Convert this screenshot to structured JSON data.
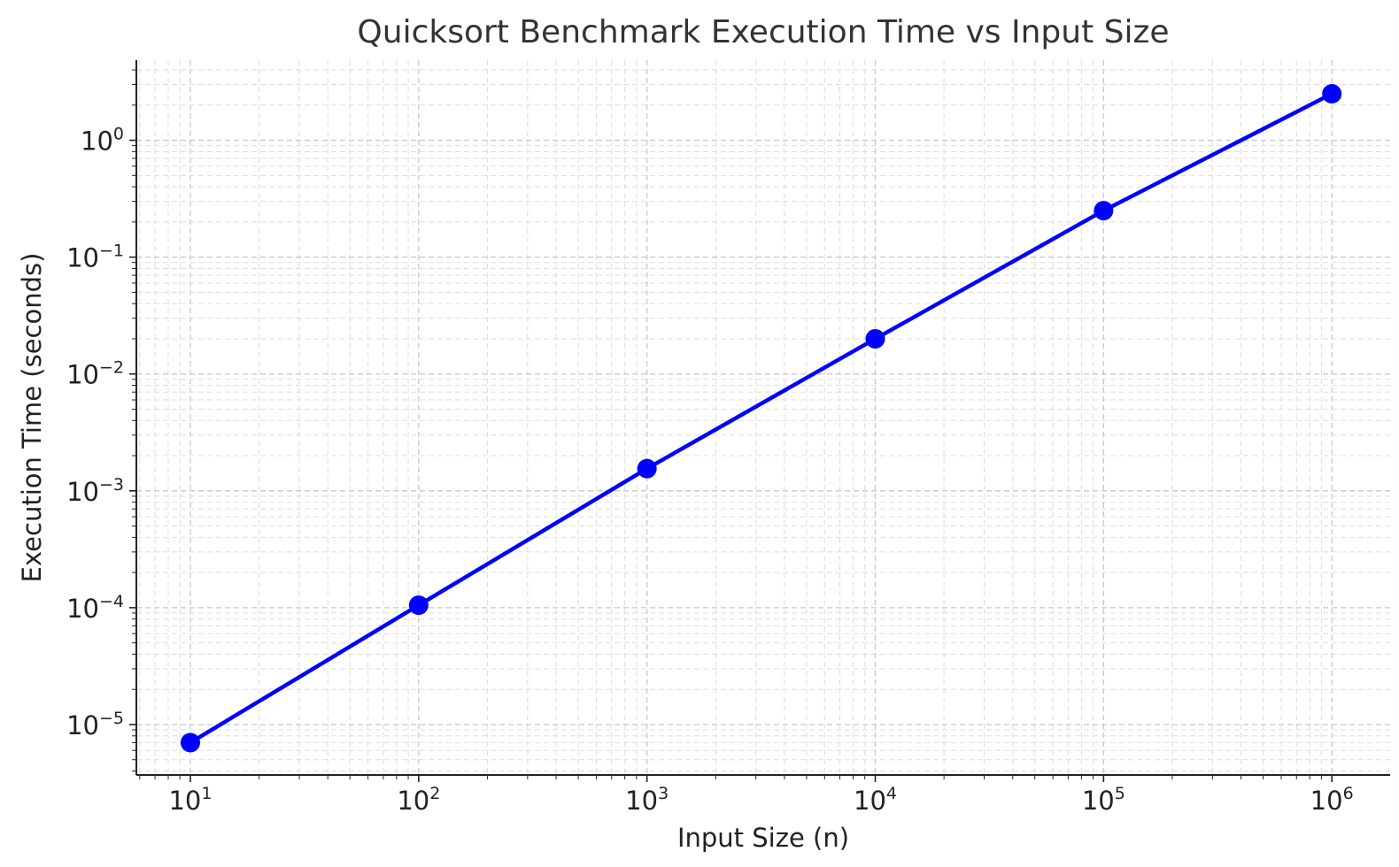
{
  "chart_data": {
    "type": "line",
    "title": "Quicksort Benchmark Execution Time vs Input Size",
    "xlabel": "Input Size (n)",
    "ylabel": "Execution Time (seconds)",
    "xscale": "log",
    "yscale": "log",
    "xlim": [
      5.8,
      1800000
    ],
    "ylim": [
      3.7e-06,
      4.85
    ],
    "grid": true,
    "legend": "none",
    "series_color": "#0000ff",
    "x": [
      10,
      100,
      1000,
      10000,
      100000,
      1000000
    ],
    "series": [
      {
        "values": [
          7e-06,
          0.000105,
          0.00155,
          0.02,
          0.25,
          2.5
        ]
      }
    ],
    "xticks": [
      {
        "value": 10,
        "base": "10",
        "exp": "1"
      },
      {
        "value": 100,
        "base": "10",
        "exp": "2"
      },
      {
        "value": 1000,
        "base": "10",
        "exp": "3"
      },
      {
        "value": 10000,
        "base": "10",
        "exp": "4"
      },
      {
        "value": 100000,
        "base": "10",
        "exp": "5"
      },
      {
        "value": 1000000,
        "base": "10",
        "exp": "6"
      }
    ],
    "yticks": [
      {
        "value": 1e-05,
        "base": "10",
        "exp": "−5"
      },
      {
        "value": 0.0001,
        "base": "10",
        "exp": "−4"
      },
      {
        "value": 0.001,
        "base": "10",
        "exp": "−3"
      },
      {
        "value": 0.01,
        "base": "10",
        "exp": "−2"
      },
      {
        "value": 0.1,
        "base": "10",
        "exp": "−1"
      },
      {
        "value": 1,
        "base": "10",
        "exp": "0"
      }
    ]
  }
}
